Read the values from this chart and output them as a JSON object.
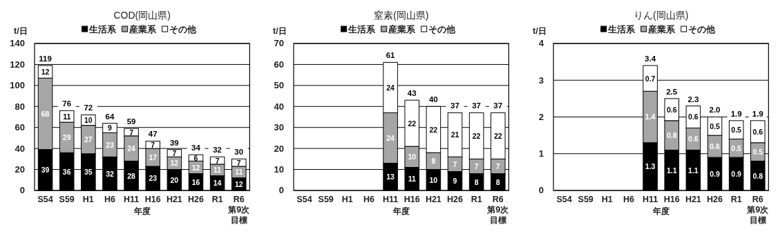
{
  "chart_data": [
    {
      "type": "bar",
      "stacked": true,
      "title": "COD(岡山県)",
      "ylabel": "t/日",
      "xlabel": "年度",
      "categories": [
        "S54",
        "S59",
        "H1",
        "H6",
        "H11",
        "H16",
        "H21",
        "H26",
        "R1",
        "R6第9次目標"
      ],
      "ylim": [
        0,
        140
      ],
      "yticks": [
        0,
        20,
        40,
        60,
        80,
        100,
        120,
        140
      ],
      "grid": "y",
      "legend": "top",
      "data_labels": true,
      "series": [
        {
          "name": "生活系",
          "color": "#000000",
          "values": [
            39,
            36,
            35,
            32,
            28,
            23,
            20,
            16,
            14,
            12
          ]
        },
        {
          "name": "産業系",
          "color": "#a6a6a6",
          "values": [
            68,
            29,
            27,
            23,
            24,
            17,
            12,
            12,
            11,
            11
          ]
        },
        {
          "name": "その他",
          "color": "#ffffff",
          "values": [
            12,
            11,
            10,
            9,
            7,
            7,
            7,
            6,
            7,
            7
          ]
        }
      ],
      "totals": [
        "119",
        "76",
        "72",
        "64",
        "59",
        "47",
        "39",
        "34",
        "32",
        "30"
      ]
    },
    {
      "type": "bar",
      "stacked": true,
      "title": "窒素(岡山県)",
      "ylabel": "t/日",
      "xlabel": "年度",
      "categories": [
        "S54",
        "S59",
        "H1",
        "H6",
        "H11",
        "H16",
        "H21",
        "H26",
        "R1",
        "R6第9次目標"
      ],
      "ylim": [
        0,
        70
      ],
      "yticks": [
        0,
        10,
        20,
        30,
        40,
        50,
        60,
        70
      ],
      "grid": "y",
      "legend": "top",
      "data_labels": true,
      "series": [
        {
          "name": "生活系",
          "color": "#000000",
          "values": [
            null,
            null,
            null,
            null,
            13,
            11,
            10,
            9,
            8,
            8
          ]
        },
        {
          "name": "産業系",
          "color": "#a6a6a6",
          "values": [
            null,
            null,
            null,
            null,
            24,
            10,
            8,
            7,
            7,
            7
          ]
        },
        {
          "name": "その他",
          "color": "#ffffff",
          "values": [
            null,
            null,
            null,
            null,
            24,
            22,
            22,
            21,
            22,
            22
          ]
        }
      ],
      "totals": [
        null,
        null,
        null,
        null,
        "61",
        "43",
        "40",
        "37",
        "37",
        "37"
      ]
    },
    {
      "type": "bar",
      "stacked": true,
      "title": "りん(岡山県)",
      "ylabel": "t/日",
      "xlabel": "年度",
      "categories": [
        "S54",
        "S59",
        "H1",
        "H6",
        "H11",
        "H16",
        "H21",
        "H26",
        "R1",
        "R6第9次目標"
      ],
      "ylim": [
        0,
        4
      ],
      "yticks": [
        0,
        1,
        2,
        3,
        4
      ],
      "grid": "y",
      "legend": "top",
      "data_labels": true,
      "series": [
        {
          "name": "生活系",
          "color": "#000000",
          "values": [
            null,
            null,
            null,
            null,
            1.3,
            1.1,
            1.1,
            0.9,
            0.9,
            0.8
          ]
        },
        {
          "name": "産業系",
          "color": "#a6a6a6",
          "values": [
            null,
            null,
            null,
            null,
            1.4,
            0.8,
            0.6,
            0.6,
            0.5,
            0.5
          ]
        },
        {
          "name": "その他",
          "color": "#ffffff",
          "values": [
            null,
            null,
            null,
            null,
            0.7,
            0.6,
            0.6,
            0.5,
            0.5,
            0.6
          ]
        }
      ],
      "totals": [
        null,
        null,
        null,
        null,
        "3.4",
        "2.5",
        "2.3",
        "2.0",
        "1.9",
        "1.9"
      ]
    }
  ]
}
